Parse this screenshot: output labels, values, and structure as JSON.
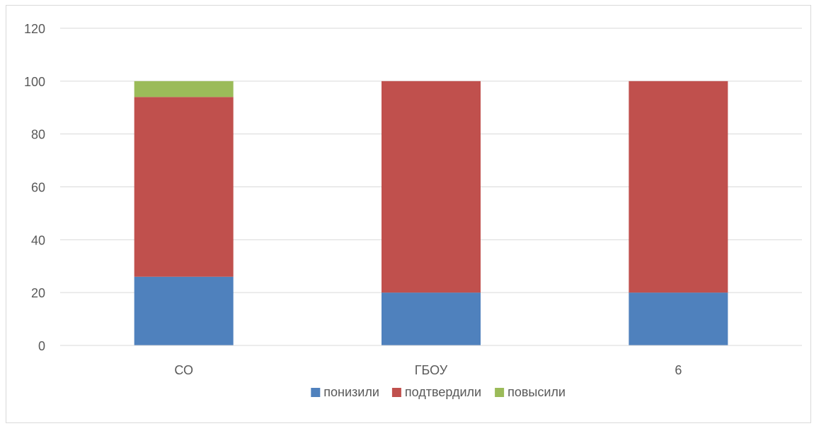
{
  "chart_data": {
    "type": "bar",
    "stacked": true,
    "categories": [
      "СО",
      "ГБОУ",
      "6"
    ],
    "series": [
      {
        "name": "понизили",
        "values": [
          26,
          20,
          20
        ],
        "color": "#4F81BD"
      },
      {
        "name": "подтвердили",
        "values": [
          68,
          80,
          80
        ],
        "color": "#C0504D"
      },
      {
        "name": "повысили",
        "values": [
          6,
          0,
          0
        ],
        "color": "#9BBB59"
      }
    ],
    "title": "",
    "xlabel": "",
    "ylabel": "",
    "ylim": [
      0,
      120
    ],
    "yticks": [
      0,
      20,
      40,
      60,
      80,
      100,
      120
    ],
    "grid": true,
    "legend": "bottom"
  }
}
